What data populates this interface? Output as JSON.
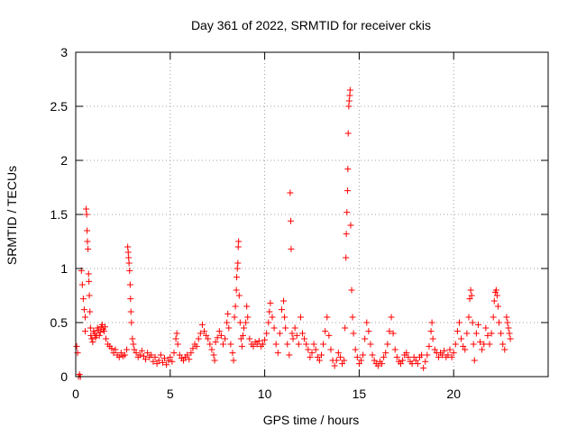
{
  "chart_data": {
    "type": "scatter",
    "title": "Day 361 of 2022, SRMTID for receiver ckis",
    "xlabel": "GPS time / hours",
    "ylabel": "SRMTID / TECUs",
    "xlim": [
      0,
      25
    ],
    "ylim": [
      0,
      3
    ],
    "x_ticks": [
      0,
      5,
      10,
      15,
      20
    ],
    "x_tick_labels": [
      "0",
      "5",
      "10",
      "15",
      "20"
    ],
    "y_ticks": [
      0,
      0.5,
      1,
      1.5,
      2,
      2.5,
      3
    ],
    "y_tick_labels": [
      "0",
      "0.5",
      "1",
      "1.5",
      "2",
      "2.5",
      "3"
    ],
    "grid": true,
    "marker": "+",
    "color": "#ff0000",
    "series": [
      {
        "name": "SRMTID",
        "points": [
          [
            0.05,
            0.28
          ],
          [
            0.1,
            0.22
          ],
          [
            0.15,
            0.0
          ],
          [
            0.2,
            0.02
          ],
          [
            0.25,
            0.0
          ],
          [
            0.3,
            0.98
          ],
          [
            0.35,
            0.85
          ],
          [
            0.4,
            0.72
          ],
          [
            0.45,
            0.62
          ],
          [
            0.5,
            0.55
          ],
          [
            0.5,
            0.42
          ],
          [
            0.55,
            1.55
          ],
          [
            0.58,
            1.5
          ],
          [
            0.6,
            1.35
          ],
          [
            0.62,
            1.25
          ],
          [
            0.65,
            1.18
          ],
          [
            0.68,
            0.95
          ],
          [
            0.7,
            0.88
          ],
          [
            0.72,
            0.75
          ],
          [
            0.75,
            0.6
          ],
          [
            0.78,
            0.45
          ],
          [
            0.8,
            0.38
          ],
          [
            0.85,
            0.35
          ],
          [
            0.9,
            0.32
          ],
          [
            0.95,
            0.42
          ],
          [
            1.0,
            0.4
          ],
          [
            1.05,
            0.36
          ],
          [
            1.1,
            0.38
          ],
          [
            1.15,
            0.45
          ],
          [
            1.2,
            0.43
          ],
          [
            1.25,
            0.38
          ],
          [
            1.3,
            0.41
          ],
          [
            1.35,
            0.46
          ],
          [
            1.4,
            0.48
          ],
          [
            1.45,
            0.44
          ],
          [
            1.5,
            0.42
          ],
          [
            1.55,
            0.46
          ],
          [
            1.6,
            0.35
          ],
          [
            1.7,
            0.3
          ],
          [
            1.8,
            0.28
          ],
          [
            1.9,
            0.26
          ],
          [
            2.0,
            0.22
          ],
          [
            2.1,
            0.25
          ],
          [
            2.2,
            0.2
          ],
          [
            2.3,
            0.18
          ],
          [
            2.4,
            0.22
          ],
          [
            2.5,
            0.19
          ],
          [
            2.6,
            0.2
          ],
          [
            2.7,
            0.25
          ],
          [
            2.75,
            1.2
          ],
          [
            2.78,
            1.15
          ],
          [
            2.8,
            1.1
          ],
          [
            2.82,
            1.05
          ],
          [
            2.85,
            0.98
          ],
          [
            2.88,
            0.85
          ],
          [
            2.9,
            0.72
          ],
          [
            2.92,
            0.6
          ],
          [
            2.95,
            0.5
          ],
          [
            3.0,
            0.35
          ],
          [
            3.05,
            0.3
          ],
          [
            3.1,
            0.25
          ],
          [
            3.2,
            0.22
          ],
          [
            3.3,
            0.18
          ],
          [
            3.4,
            0.2
          ],
          [
            3.5,
            0.24
          ],
          [
            3.6,
            0.19
          ],
          [
            3.7,
            0.16
          ],
          [
            3.8,
            0.22
          ],
          [
            3.9,
            0.18
          ],
          [
            4.0,
            0.2
          ],
          [
            4.1,
            0.14
          ],
          [
            4.2,
            0.18
          ],
          [
            4.3,
            0.12
          ],
          [
            4.4,
            0.15
          ],
          [
            4.5,
            0.2
          ],
          [
            4.6,
            0.13
          ],
          [
            4.7,
            0.17
          ],
          [
            4.8,
            0.11
          ],
          [
            4.9,
            0.15
          ],
          [
            5.0,
            0.18
          ],
          [
            5.1,
            0.14
          ],
          [
            5.2,
            0.22
          ],
          [
            5.3,
            0.35
          ],
          [
            5.35,
            0.4
          ],
          [
            5.4,
            0.3
          ],
          [
            5.5,
            0.2
          ],
          [
            5.6,
            0.17
          ],
          [
            5.7,
            0.15
          ],
          [
            5.8,
            0.18
          ],
          [
            5.9,
            0.2
          ],
          [
            6.0,
            0.16
          ],
          [
            6.1,
            0.22
          ],
          [
            6.2,
            0.26
          ],
          [
            6.3,
            0.3
          ],
          [
            6.4,
            0.28
          ],
          [
            6.5,
            0.35
          ],
          [
            6.6,
            0.4
          ],
          [
            6.7,
            0.48
          ],
          [
            6.8,
            0.42
          ],
          [
            6.9,
            0.38
          ],
          [
            7.0,
            0.35
          ],
          [
            7.1,
            0.3
          ],
          [
            7.2,
            0.25
          ],
          [
            7.3,
            0.2
          ],
          [
            7.35,
            0.15
          ],
          [
            7.4,
            0.32
          ],
          [
            7.5,
            0.36
          ],
          [
            7.6,
            0.42
          ],
          [
            7.7,
            0.38
          ],
          [
            7.8,
            0.3
          ],
          [
            7.9,
            0.35
          ],
          [
            8.0,
            0.5
          ],
          [
            8.05,
            0.58
          ],
          [
            8.1,
            0.45
          ],
          [
            8.2,
            0.3
          ],
          [
            8.3,
            0.22
          ],
          [
            8.35,
            0.15
          ],
          [
            8.4,
            0.55
          ],
          [
            8.45,
            0.65
          ],
          [
            8.5,
            0.8
          ],
          [
            8.52,
            0.92
          ],
          [
            8.55,
            1.0
          ],
          [
            8.58,
            1.05
          ],
          [
            8.6,
            1.2
          ],
          [
            8.62,
            1.25
          ],
          [
            8.65,
            0.75
          ],
          [
            8.7,
            0.5
          ],
          [
            8.75,
            0.35
          ],
          [
            8.8,
            0.28
          ],
          [
            8.85,
            0.38
          ],
          [
            8.9,
            0.45
          ],
          [
            9.0,
            0.5
          ],
          [
            9.05,
            0.65
          ],
          [
            9.1,
            0.55
          ],
          [
            9.2,
            0.35
          ],
          [
            9.3,
            0.3
          ],
          [
            9.4,
            0.28
          ],
          [
            9.5,
            0.32
          ],
          [
            9.6,
            0.3
          ],
          [
            9.7,
            0.33
          ],
          [
            9.8,
            0.28
          ],
          [
            9.9,
            0.3
          ],
          [
            10.0,
            0.34
          ],
          [
            10.1,
            0.4
          ],
          [
            10.2,
            0.5
          ],
          [
            10.25,
            0.6
          ],
          [
            10.3,
            0.68
          ],
          [
            10.4,
            0.55
          ],
          [
            10.5,
            0.45
          ],
          [
            10.6,
            0.3
          ],
          [
            10.7,
            0.22
          ],
          [
            10.8,
            0.4
          ],
          [
            10.9,
            0.62
          ],
          [
            11.0,
            0.7
          ],
          [
            11.05,
            0.55
          ],
          [
            11.1,
            0.45
          ],
          [
            11.2,
            0.3
          ],
          [
            11.3,
            0.2
          ],
          [
            11.35,
            1.7
          ],
          [
            11.38,
            1.44
          ],
          [
            11.4,
            1.18
          ],
          [
            11.45,
            0.4
          ],
          [
            11.5,
            0.35
          ],
          [
            11.6,
            0.45
          ],
          [
            11.7,
            0.38
          ],
          [
            11.8,
            0.3
          ],
          [
            11.9,
            0.55
          ],
          [
            12.0,
            0.4
          ],
          [
            12.1,
            0.35
          ],
          [
            12.2,
            0.3
          ],
          [
            12.3,
            0.25
          ],
          [
            12.4,
            0.18
          ],
          [
            12.5,
            0.22
          ],
          [
            12.6,
            0.3
          ],
          [
            12.7,
            0.25
          ],
          [
            12.8,
            0.18
          ],
          [
            12.9,
            0.15
          ],
          [
            13.0,
            0.2
          ],
          [
            13.1,
            0.3
          ],
          [
            13.2,
            0.42
          ],
          [
            13.3,
            0.55
          ],
          [
            13.4,
            0.38
          ],
          [
            13.5,
            0.25
          ],
          [
            13.6,
            0.15
          ],
          [
            13.7,
            0.1
          ],
          [
            13.8,
            0.15
          ],
          [
            13.9,
            0.22
          ],
          [
            14.0,
            0.18
          ],
          [
            14.1,
            0.12
          ],
          [
            14.2,
            0.15
          ],
          [
            14.25,
            0.45
          ],
          [
            14.3,
            1.1
          ],
          [
            14.32,
            1.32
          ],
          [
            14.35,
            1.52
          ],
          [
            14.38,
            1.72
          ],
          [
            14.4,
            1.92
          ],
          [
            14.42,
            2.25
          ],
          [
            14.45,
            2.5
          ],
          [
            14.47,
            2.55
          ],
          [
            14.5,
            2.6
          ],
          [
            14.52,
            2.65
          ],
          [
            14.55,
            1.4
          ],
          [
            14.6,
            0.8
          ],
          [
            14.65,
            0.55
          ],
          [
            14.7,
            0.4
          ],
          [
            14.8,
            0.25
          ],
          [
            14.9,
            0.18
          ],
          [
            15.0,
            0.12
          ],
          [
            15.1,
            0.15
          ],
          [
            15.2,
            0.2
          ],
          [
            15.3,
            0.35
          ],
          [
            15.4,
            0.5
          ],
          [
            15.5,
            0.42
          ],
          [
            15.6,
            0.3
          ],
          [
            15.7,
            0.2
          ],
          [
            15.8,
            0.15
          ],
          [
            15.9,
            0.12
          ],
          [
            16.0,
            0.1
          ],
          [
            16.1,
            0.14
          ],
          [
            16.2,
            0.12
          ],
          [
            16.3,
            0.18
          ],
          [
            16.4,
            0.22
          ],
          [
            16.5,
            0.3
          ],
          [
            16.6,
            0.42
          ],
          [
            16.7,
            0.55
          ],
          [
            16.8,
            0.4
          ],
          [
            16.9,
            0.25
          ],
          [
            17.0,
            0.18
          ],
          [
            17.1,
            0.14
          ],
          [
            17.2,
            0.12
          ],
          [
            17.3,
            0.15
          ],
          [
            17.4,
            0.2
          ],
          [
            17.5,
            0.22
          ],
          [
            17.6,
            0.18
          ],
          [
            17.7,
            0.14
          ],
          [
            17.8,
            0.12
          ],
          [
            17.9,
            0.18
          ],
          [
            18.0,
            0.15
          ],
          [
            18.1,
            0.12
          ],
          [
            18.2,
            0.18
          ],
          [
            18.3,
            0.2
          ],
          [
            18.4,
            0.08
          ],
          [
            18.5,
            0.14
          ],
          [
            18.6,
            0.2
          ],
          [
            18.7,
            0.28
          ],
          [
            18.8,
            0.42
          ],
          [
            18.85,
            0.5
          ],
          [
            18.9,
            0.35
          ],
          [
            19.0,
            0.25
          ],
          [
            19.1,
            0.22
          ],
          [
            19.2,
            0.18
          ],
          [
            19.3,
            0.22
          ],
          [
            19.4,
            0.2
          ],
          [
            19.5,
            0.24
          ],
          [
            19.6,
            0.18
          ],
          [
            19.7,
            0.2
          ],
          [
            19.8,
            0.25
          ],
          [
            19.9,
            0.18
          ],
          [
            20.0,
            0.22
          ],
          [
            20.1,
            0.3
          ],
          [
            20.2,
            0.42
          ],
          [
            20.3,
            0.5
          ],
          [
            20.4,
            0.35
          ],
          [
            20.5,
            0.28
          ],
          [
            20.6,
            0.25
          ],
          [
            20.7,
            0.4
          ],
          [
            20.8,
            0.55
          ],
          [
            20.85,
            0.72
          ],
          [
            20.9,
            0.8
          ],
          [
            20.95,
            0.75
          ],
          [
            21.0,
            0.5
          ],
          [
            21.05,
            0.3
          ],
          [
            21.1,
            0.15
          ],
          [
            21.2,
            0.4
          ],
          [
            21.3,
            0.48
          ],
          [
            21.4,
            0.32
          ],
          [
            21.5,
            0.25
          ],
          [
            21.6,
            0.3
          ],
          [
            21.7,
            0.45
          ],
          [
            21.8,
            0.38
          ],
          [
            21.9,
            0.3
          ],
          [
            22.0,
            0.4
          ],
          [
            22.1,
            0.55
          ],
          [
            22.15,
            0.7
          ],
          [
            22.2,
            0.78
          ],
          [
            22.25,
            0.8
          ],
          [
            22.3,
            0.75
          ],
          [
            22.35,
            0.65
          ],
          [
            22.4,
            0.5
          ],
          [
            22.5,
            0.4
          ],
          [
            22.6,
            0.3
          ],
          [
            22.7,
            0.25
          ],
          [
            22.8,
            0.55
          ],
          [
            22.85,
            0.5
          ],
          [
            22.9,
            0.45
          ],
          [
            22.95,
            0.4
          ],
          [
            23.0,
            0.35
          ]
        ]
      }
    ]
  }
}
